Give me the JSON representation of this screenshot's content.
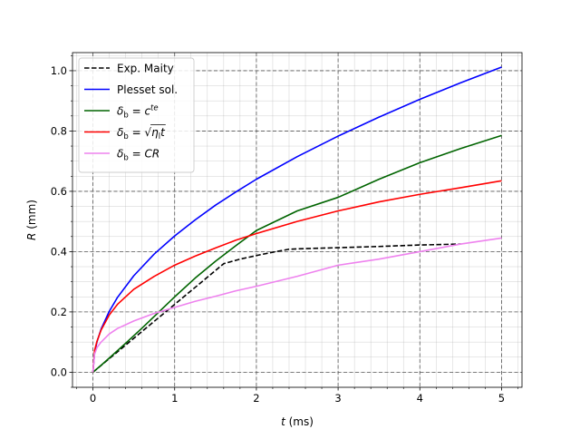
{
  "chart_data": {
    "type": "line",
    "title": "",
    "xlabel": "t (ms)",
    "ylabel": "R (mm)",
    "xlabel_var": "t",
    "xlabel_unit": " (ms)",
    "ylabel_var": "R",
    "ylabel_unit": " (mm)",
    "xlim": [
      -0.25,
      5.25
    ],
    "ylim": [
      -0.05,
      1.06
    ],
    "xticks": [
      0,
      1,
      2,
      3,
      4,
      5
    ],
    "xtick_labels": [
      "0",
      "1",
      "2",
      "3",
      "4",
      "5"
    ],
    "yticks": [
      0.0,
      0.2,
      0.4,
      0.6,
      0.8,
      1.0
    ],
    "ytick_labels": [
      "0.0",
      "0.2",
      "0.4",
      "0.6",
      "0.8",
      "1.0"
    ],
    "minor_grid": true,
    "major_grid": true,
    "legend_position": "top-left",
    "series": [
      {
        "name": "Exp. Maity",
        "color": "#000000",
        "dash": "dashed",
        "x": [
          0,
          0.2,
          0.4,
          0.6,
          0.8,
          1.0,
          1.2,
          1.4,
          1.6,
          1.8,
          2.0,
          2.2,
          2.4,
          2.6,
          3.0,
          3.5,
          4.0,
          4.5
        ],
        "y": [
          0,
          0.045,
          0.09,
          0.135,
          0.18,
          0.225,
          0.27,
          0.315,
          0.36,
          0.375,
          0.387,
          0.398,
          0.408,
          0.41,
          0.413,
          0.417,
          0.422,
          0.425
        ]
      },
      {
        "name": "Plesset sol.",
        "color": "#0000ff",
        "dash": "solid",
        "x": [
          0,
          0.02,
          0.05,
          0.1,
          0.2,
          0.3,
          0.5,
          0.75,
          1.0,
          1.25,
          1.5,
          1.75,
          2.0,
          2.5,
          3.0,
          3.5,
          4.0,
          4.5,
          5.0
        ],
        "y": [
          0,
          0.064,
          0.101,
          0.143,
          0.202,
          0.248,
          0.32,
          0.392,
          0.452,
          0.505,
          0.554,
          0.598,
          0.64,
          0.715,
          0.783,
          0.846,
          0.905,
          0.96,
          1.012
        ]
      },
      {
        "name": "δ_b = c^te",
        "color": "#006400",
        "dash": "solid",
        "x": [
          0,
          0.1,
          0.2,
          0.4,
          0.6,
          0.8,
          1.0,
          1.25,
          1.5,
          1.75,
          2.0,
          2.5,
          3.0,
          3.5,
          4.0,
          4.5,
          5.0
        ],
        "y": [
          0,
          0.023,
          0.047,
          0.096,
          0.146,
          0.198,
          0.25,
          0.312,
          0.368,
          0.42,
          0.47,
          0.535,
          0.58,
          0.64,
          0.695,
          0.742,
          0.785
        ]
      },
      {
        "name": "δ_b = √(η_l t)",
        "color": "#ff0000",
        "dash": "solid",
        "x": [
          0,
          0.02,
          0.05,
          0.1,
          0.2,
          0.3,
          0.5,
          0.75,
          1.0,
          1.25,
          1.5,
          1.75,
          2.0,
          2.5,
          3.0,
          3.5,
          4.0,
          4.5,
          5.0
        ],
        "y": [
          0,
          0.072,
          0.103,
          0.14,
          0.19,
          0.225,
          0.275,
          0.318,
          0.355,
          0.385,
          0.412,
          0.438,
          0.46,
          0.5,
          0.535,
          0.565,
          0.59,
          0.612,
          0.635
        ]
      },
      {
        "name": "δ_b = CR",
        "color": "#ee82ee",
        "dash": "solid",
        "x": [
          0,
          0.02,
          0.05,
          0.1,
          0.2,
          0.3,
          0.5,
          0.75,
          1.0,
          1.25,
          1.5,
          1.75,
          2.0,
          2.5,
          3.0,
          3.5,
          4.0,
          4.5,
          5.0
        ],
        "y": [
          0,
          0.06,
          0.082,
          0.1,
          0.127,
          0.145,
          0.17,
          0.195,
          0.215,
          0.235,
          0.252,
          0.27,
          0.285,
          0.318,
          0.355,
          0.375,
          0.4,
          0.425,
          0.445
        ]
      }
    ],
    "legend_items": [
      {
        "name": "Exp. Maity",
        "color": "#000000",
        "dash": "dashed",
        "label_parts": [
          {
            "t": "Exp. Maity",
            "s": "normal"
          }
        ]
      },
      {
        "name": "Plesset sol.",
        "color": "#0000ff",
        "dash": "solid",
        "label_parts": [
          {
            "t": "Plesset sol.",
            "s": "normal"
          }
        ]
      },
      {
        "name": "δ_b = c^te",
        "color": "#006400",
        "dash": "solid",
        "label_parts": [
          {
            "t": "δ",
            "s": "italic"
          },
          {
            "t": "b",
            "s": "sub"
          },
          {
            "t": " = ",
            "s": "normal"
          },
          {
            "t": "c",
            "s": "italic"
          },
          {
            "t": "te",
            "s": "sup"
          }
        ]
      },
      {
        "name": "δ_b = √(η_l t)",
        "color": "#ff0000",
        "dash": "solid",
        "label_parts": [
          {
            "t": "δ",
            "s": "italic"
          },
          {
            "t": "b",
            "s": "sub"
          },
          {
            "t": " = √",
            "s": "normal"
          },
          {
            "t": "η",
            "s": "italic-over"
          },
          {
            "t": "l",
            "s": "sub-over"
          },
          {
            "t": "t",
            "s": "italic-over"
          }
        ]
      },
      {
        "name": "δ_b = CR",
        "color": "#ee82ee",
        "dash": "solid",
        "label_parts": [
          {
            "t": "δ",
            "s": "italic"
          },
          {
            "t": "b",
            "s": "sub"
          },
          {
            "t": " = ",
            "s": "normal"
          },
          {
            "t": "CR",
            "s": "italic"
          }
        ]
      }
    ]
  }
}
